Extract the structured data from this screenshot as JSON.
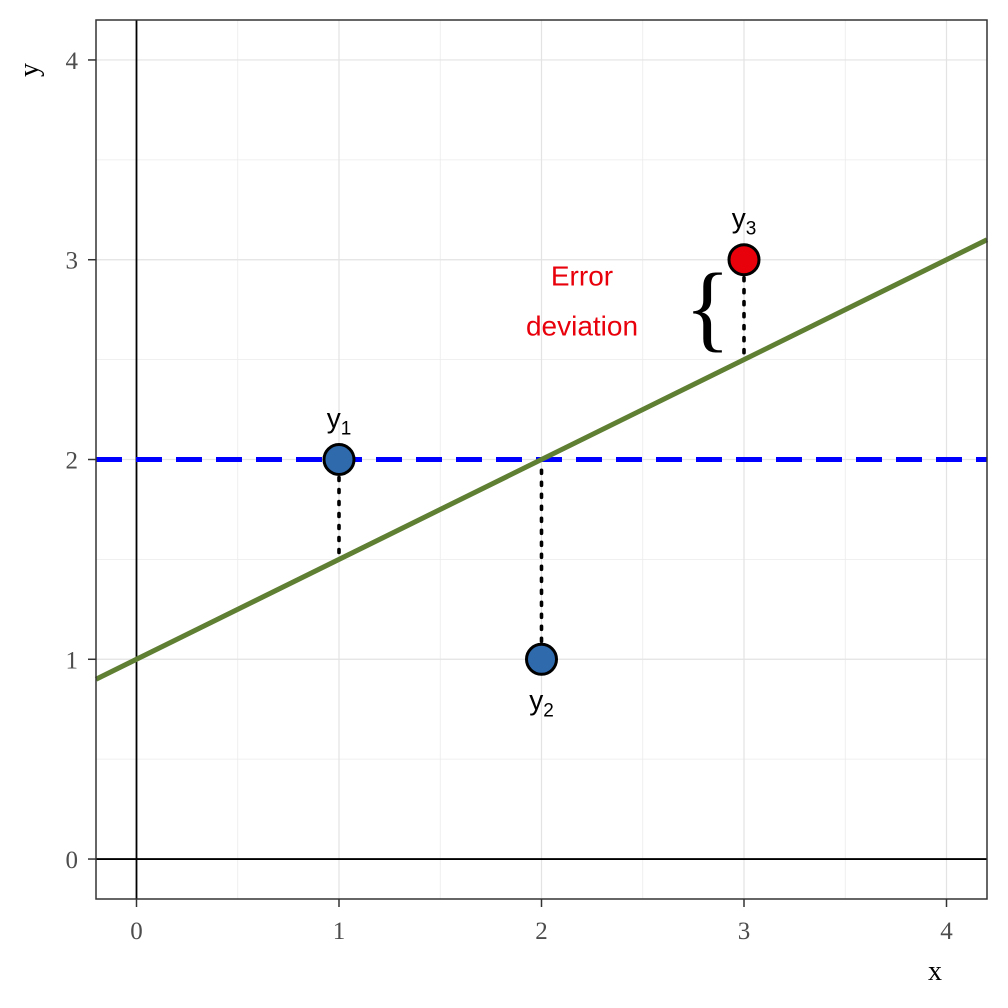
{
  "chart_data": {
    "type": "scatter",
    "title": "",
    "xlabel": "x",
    "ylabel": "y",
    "xlim": [
      -0.2,
      4.2
    ],
    "ylim": [
      -0.2,
      4.2
    ],
    "x_ticks": [
      "0",
      "1",
      "2",
      "3",
      "4"
    ],
    "y_ticks": [
      "0",
      "1",
      "2",
      "3",
      "4"
    ],
    "grid": true,
    "points": [
      {
        "x": 1,
        "y": 2,
        "label": "y",
        "subscript": "1",
        "label_side": "above",
        "color": "#2f6aad"
      },
      {
        "x": 2,
        "y": 1,
        "label": "y",
        "subscript": "2",
        "label_side": "below",
        "color": "#2f6aad"
      },
      {
        "x": 3,
        "y": 3,
        "label": "y",
        "subscript": "3",
        "label_side": "above",
        "color": "#e8000b"
      }
    ],
    "fit_line": {
      "intercept": 1,
      "slope": 0.5,
      "color": "#5f7f32",
      "style": "solid"
    },
    "mean_line": {
      "y": 2,
      "color": "#0000ff",
      "style": "dashed"
    },
    "annotation": {
      "lines": [
        "Error",
        "deviation"
      ],
      "color": "#e8000b"
    },
    "brace": "{"
  }
}
